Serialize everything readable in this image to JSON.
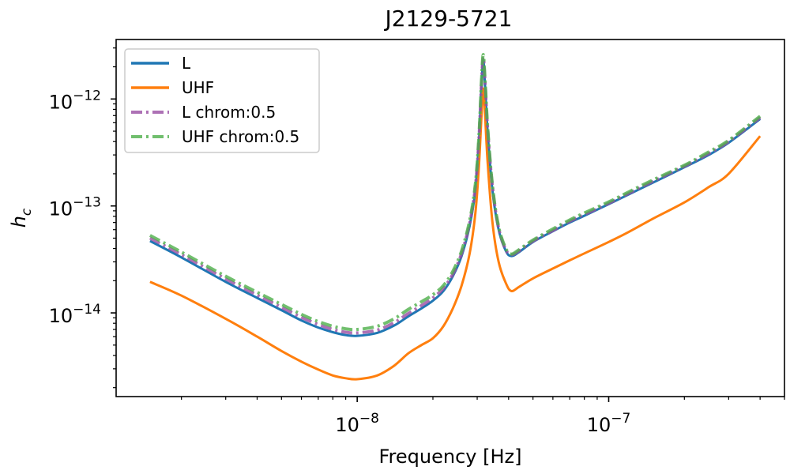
{
  "chart_data": {
    "type": "line",
    "title": "J2129-5721",
    "xlabel": "Frequency [Hz]",
    "ylabel": "h_c",
    "xscale": "log",
    "yscale": "log",
    "xlim": [
      1.1e-09,
      5e-07
    ],
    "ylim": [
      1.65e-15,
      3.6e-12
    ],
    "grid": false,
    "legend_position": "top-left",
    "x_tick_labels": [
      {
        "value": 1e-08,
        "base": "10",
        "exp": "−8"
      },
      {
        "value": 1e-07,
        "base": "10",
        "exp": "−7"
      }
    ],
    "y_tick_labels": [
      {
        "value": 1e-14,
        "base": "10",
        "exp": "−14"
      },
      {
        "value": 1e-13,
        "base": "10",
        "exp": "−13"
      },
      {
        "value": 1e-12,
        "base": "10",
        "exp": "−12"
      }
    ],
    "series": [
      {
        "name": "L",
        "color": "#1f77b4",
        "style": "solid",
        "x": [
          1.5e-09,
          2e-09,
          3e-09,
          4e-09,
          5e-09,
          6e-09,
          7e-09,
          8e-09,
          9e-09,
          1e-08,
          1.2e-08,
          1.4e-08,
          1.6e-08,
          1.8e-08,
          2e-08,
          2.2e-08,
          2.4e-08,
          2.6e-08,
          2.8e-08,
          2.95e-08,
          3.05e-08,
          3.12e-08,
          3.17e-08,
          3.22e-08,
          3.3e-08,
          3.45e-08,
          3.65e-08,
          3.9e-08,
          4.1e-08,
          4.4e-08,
          5e-08,
          6e-08,
          7e-08,
          8e-08,
          1e-07,
          1.2e-07,
          1.5e-07,
          2e-07,
          2.5e-07,
          3e-07,
          4e-07
        ],
        "y": [
          4.7e-14,
          3.3e-14,
          1.95e-14,
          1.38e-14,
          1.06e-14,
          8.5e-15,
          7.3e-15,
          6.6e-15,
          6.2e-15,
          6.1e-15,
          6.5e-15,
          7.6e-15,
          9.3e-15,
          1.1e-14,
          1.3e-14,
          1.6e-14,
          2.2e-14,
          3.4e-14,
          6.5e-14,
          1.4e-13,
          4e-13,
          1.3e-12,
          2.3e-12,
          1.4e-12,
          5e-13,
          1.4e-13,
          6e-14,
          3.8e-14,
          3.4e-14,
          3.7e-14,
          4.6e-14,
          5.8e-14,
          7e-14,
          8.1e-14,
          1.04e-13,
          1.28e-13,
          1.65e-13,
          2.3e-13,
          3e-13,
          3.9e-13,
          6.5e-13
        ]
      },
      {
        "name": "UHF",
        "color": "#ff7f0e",
        "style": "solid",
        "x": [
          1.5e-09,
          2e-09,
          3e-09,
          4e-09,
          5e-09,
          6e-09,
          7e-09,
          8e-09,
          9e-09,
          1e-08,
          1.2e-08,
          1.4e-08,
          1.6e-08,
          1.8e-08,
          2e-08,
          2.2e-08,
          2.4e-08,
          2.6e-08,
          2.8e-08,
          2.95e-08,
          3.05e-08,
          3.12e-08,
          3.17e-08,
          3.22e-08,
          3.3e-08,
          3.45e-08,
          3.65e-08,
          3.9e-08,
          4.1e-08,
          4.4e-08,
          5e-08,
          6e-08,
          7e-08,
          8e-08,
          1e-07,
          1.2e-07,
          1.5e-07,
          2e-07,
          2.5e-07,
          3e-07,
          4e-07
        ],
        "y": [
          1.95e-14,
          1.45e-14,
          8.8e-15,
          6e-15,
          4.4e-15,
          3.5e-15,
          2.95e-15,
          2.6e-15,
          2.45e-15,
          2.4e-15,
          2.6e-15,
          3.2e-15,
          4.2e-15,
          5e-15,
          5.8e-15,
          7.5e-15,
          1.1e-14,
          1.8e-14,
          3.6e-14,
          8.5e-14,
          2.4e-13,
          7e-13,
          1.25e-12,
          7.5e-13,
          2.6e-13,
          7e-14,
          3e-14,
          1.9e-14,
          1.6e-14,
          1.75e-14,
          2.1e-14,
          2.6e-14,
          3.1e-14,
          3.6e-14,
          4.6e-14,
          5.7e-14,
          7.6e-14,
          1.08e-13,
          1.5e-13,
          2e-13,
          4.5e-13
        ]
      },
      {
        "name": "L chrom:0.5",
        "color": "#984ea3",
        "style": "dashdot",
        "x": [
          1.5e-09,
          2e-09,
          3e-09,
          4e-09,
          5e-09,
          6e-09,
          7e-09,
          8e-09,
          9e-09,
          1e-08,
          1.2e-08,
          1.4e-08,
          1.6e-08,
          1.8e-08,
          2e-08,
          2.2e-08,
          2.4e-08,
          2.6e-08,
          2.8e-08,
          2.95e-08,
          3.05e-08,
          3.12e-08,
          3.17e-08,
          3.22e-08,
          3.3e-08,
          3.45e-08,
          3.65e-08,
          3.9e-08,
          4.1e-08,
          4.4e-08,
          5e-08,
          6e-08,
          7e-08,
          8e-08,
          1e-07,
          1.2e-07,
          1.5e-07,
          2e-07,
          2.5e-07,
          3e-07,
          4e-07
        ],
        "y": [
          5e-14,
          3.5e-14,
          2.08e-14,
          1.47e-14,
          1.13e-14,
          9.1e-15,
          7.8e-15,
          7e-15,
          6.6e-15,
          6.5e-15,
          6.9e-15,
          8.1e-15,
          9.9e-15,
          1.17e-14,
          1.38e-14,
          1.7e-14,
          2.3e-14,
          3.6e-14,
          6.9e-14,
          1.5e-13,
          4.3e-13,
          1.4e-12,
          2.45e-12,
          1.5e-12,
          5.3e-13,
          1.5e-13,
          6.2e-14,
          3.9e-14,
          3.5e-14,
          3.8e-14,
          4.7e-14,
          5.9e-14,
          7.2e-14,
          8.3e-14,
          1.06e-13,
          1.31e-13,
          1.7e-13,
          2.35e-13,
          3.1e-13,
          4e-13,
          6.7e-13
        ]
      },
      {
        "name": "UHF chrom:0.5",
        "color": "#4daf4a",
        "style": "dashdot",
        "x": [
          1.5e-09,
          2e-09,
          3e-09,
          4e-09,
          5e-09,
          6e-09,
          7e-09,
          8e-09,
          9e-09,
          1e-08,
          1.2e-08,
          1.4e-08,
          1.6e-08,
          1.8e-08,
          2e-08,
          2.2e-08,
          2.4e-08,
          2.6e-08,
          2.8e-08,
          2.95e-08,
          3.05e-08,
          3.12e-08,
          3.17e-08,
          3.22e-08,
          3.3e-08,
          3.45e-08,
          3.65e-08,
          3.9e-08,
          4.1e-08,
          4.4e-08,
          5e-08,
          6e-08,
          7e-08,
          8e-08,
          1e-07,
          1.2e-07,
          1.5e-07,
          2e-07,
          2.5e-07,
          3e-07,
          4e-07
        ],
        "y": [
          5.3e-14,
          3.7e-14,
          2.2e-14,
          1.56e-14,
          1.2e-14,
          9.7e-15,
          8.3e-15,
          7.5e-15,
          7.1e-15,
          7e-15,
          7.5e-15,
          8.8e-15,
          1.08e-14,
          1.27e-14,
          1.48e-14,
          1.8e-14,
          2.45e-14,
          3.8e-14,
          7.3e-14,
          1.6e-13,
          4.6e-13,
          1.5e-12,
          2.6e-12,
          1.6e-12,
          5.6e-13,
          1.55e-13,
          6.4e-14,
          4e-14,
          3.55e-14,
          3.9e-14,
          4.8e-14,
          6.1e-14,
          7.4e-14,
          8.6e-14,
          1.09e-13,
          1.35e-13,
          1.75e-13,
          2.4e-13,
          3.2e-13,
          4.1e-13,
          6.9e-13
        ]
      }
    ]
  }
}
